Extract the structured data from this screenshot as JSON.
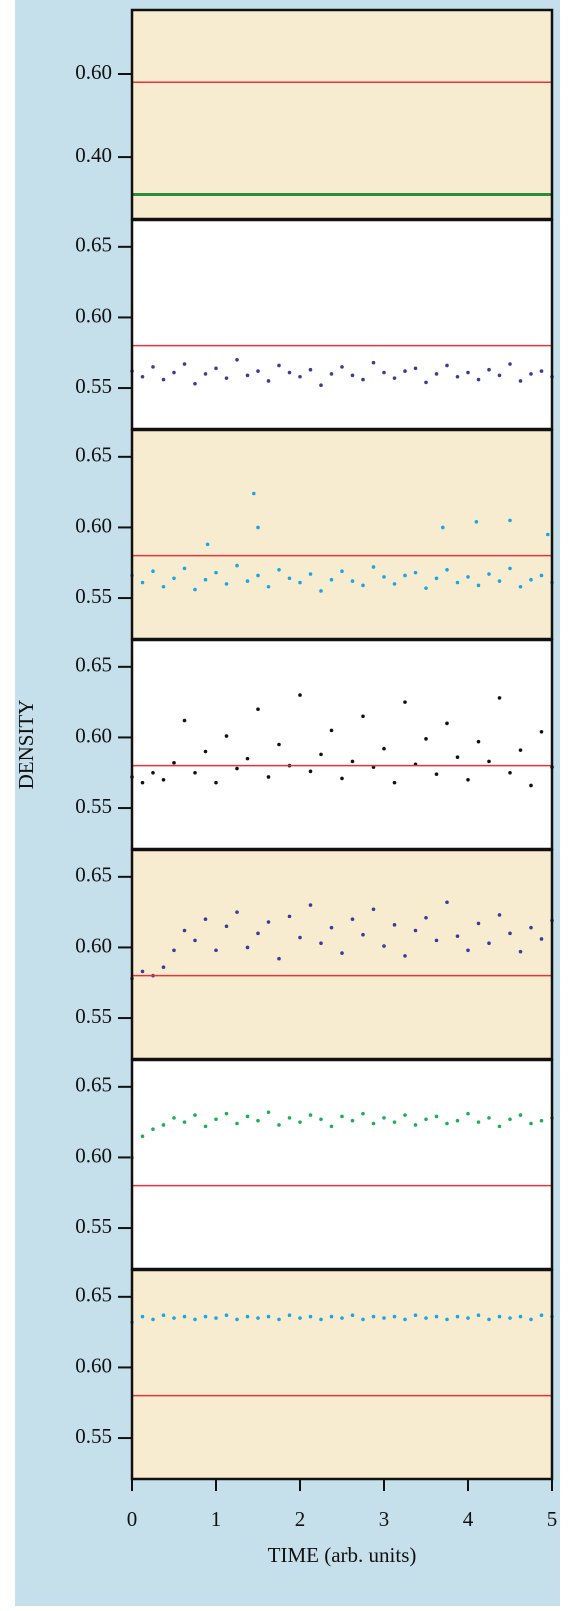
{
  "chart_data": [
    {
      "type": "scatter",
      "xlim": [
        0,
        5
      ],
      "ylim": [
        0.251,
        0.754
      ],
      "yticks": [
        {
          "value": 0.4,
          "label": "0.40"
        },
        {
          "value": 0.6,
          "label": "0.60"
        }
      ],
      "background": "#f8ecd0",
      "hline": 0.58,
      "hline_color": "#e8333a",
      "series": [
        {
          "color": "#2e8b3a",
          "style": "line",
          "x": [
            0,
            5
          ],
          "values": [
            0.31,
            0.31
          ]
        }
      ]
    },
    {
      "type": "scatter",
      "xlim": [
        0,
        5
      ],
      "ylim": [
        0.521,
        0.669
      ],
      "yticks": [
        0.55,
        {
          "value": 0.6,
          "label": "0.60"
        },
        0.65
      ],
      "background": "#ffffff",
      "hline": 0.58,
      "hline_color": "#e8333a",
      "series": [
        {
          "color": "#3b3b9a",
          "x": [
            0,
            0.125,
            0.25,
            0.375,
            0.5,
            0.625,
            0.75,
            0.875,
            1,
            1.125,
            1.25,
            1.375,
            1.5,
            1.625,
            1.75,
            1.875,
            2,
            2.125,
            2.25,
            2.375,
            2.5,
            2.625,
            2.75,
            2.875,
            3,
            3.125,
            3.25,
            3.375,
            3.5,
            3.625,
            3.75,
            3.875,
            4,
            4.125,
            4.25,
            4.375,
            4.5,
            4.625,
            4.75,
            4.875,
            5
          ],
          "values": [
            0.562,
            0.558,
            0.565,
            0.556,
            0.561,
            0.567,
            0.553,
            0.56,
            0.564,
            0.557,
            0.57,
            0.559,
            0.562,
            0.555,
            0.566,
            0.561,
            0.558,
            0.563,
            0.552,
            0.56,
            0.565,
            0.559,
            0.556,
            0.568,
            0.561,
            0.557,
            0.562,
            0.564,
            0.554,
            0.56,
            0.566,
            0.558,
            0.561,
            0.556,
            0.563,
            0.559,
            0.567,
            0.555,
            0.56,
            0.562,
            0.558
          ]
        }
      ]
    },
    {
      "type": "scatter",
      "xlim": [
        0,
        5
      ],
      "ylim": [
        0.521,
        0.669
      ],
      "yticks": [
        0.55,
        {
          "value": 0.6,
          "label": "0.60"
        },
        0.65
      ],
      "background": "#f8ecd0",
      "hline": 0.58,
      "hline_color": "#e8333a",
      "series": [
        {
          "color": "#1aa6e0",
          "x": [
            0,
            0.125,
            0.25,
            0.375,
            0.5,
            0.625,
            0.75,
            0.875,
            1,
            1.125,
            1.25,
            1.375,
            1.5,
            1.625,
            1.75,
            1.875,
            2,
            2.125,
            2.25,
            2.375,
            2.5,
            2.625,
            2.75,
            2.875,
            3,
            3.125,
            3.25,
            3.375,
            3.5,
            3.625,
            3.75,
            3.875,
            4,
            4.125,
            4.25,
            4.375,
            4.5,
            4.625,
            4.75,
            4.875,
            5,
            0.9,
            1.45,
            1.5,
            3.7,
            4.1,
            4.5,
            4.95
          ],
          "values": [
            0.566,
            0.561,
            0.569,
            0.558,
            0.564,
            0.571,
            0.556,
            0.563,
            0.568,
            0.56,
            0.573,
            0.562,
            0.566,
            0.558,
            0.57,
            0.564,
            0.561,
            0.567,
            0.555,
            0.563,
            0.569,
            0.562,
            0.559,
            0.572,
            0.565,
            0.56,
            0.566,
            0.568,
            0.557,
            0.564,
            0.57,
            0.561,
            0.565,
            0.559,
            0.567,
            0.562,
            0.571,
            0.558,
            0.563,
            0.566,
            0.561,
            0.588,
            0.624,
            0.6,
            0.6,
            0.604,
            0.605,
            0.595
          ]
        }
      ]
    },
    {
      "type": "scatter",
      "xlim": [
        0,
        5
      ],
      "ylim": [
        0.521,
        0.669
      ],
      "yticks": [
        0.55,
        {
          "value": 0.6,
          "label": "0.60"
        },
        0.65
      ],
      "background": "#ffffff",
      "hline": 0.58,
      "hline_color": "#e8333a",
      "ylabel": "DENSITY",
      "series": [
        {
          "color": "#111111",
          "x": [
            0,
            0.125,
            0.25,
            0.375,
            0.5,
            0.625,
            0.75,
            0.875,
            1,
            1.125,
            1.25,
            1.375,
            1.5,
            1.625,
            1.75,
            1.875,
            2,
            2.125,
            2.25,
            2.375,
            2.5,
            2.625,
            2.75,
            2.875,
            3,
            3.125,
            3.25,
            3.375,
            3.5,
            3.625,
            3.75,
            3.875,
            4,
            4.125,
            4.25,
            4.375,
            4.5,
            4.625,
            4.75,
            4.875,
            5
          ],
          "values": [
            0.572,
            0.568,
            0.575,
            0.57,
            0.582,
            0.612,
            0.575,
            0.59,
            0.568,
            0.601,
            0.578,
            0.585,
            0.62,
            0.572,
            0.595,
            0.58,
            0.63,
            0.576,
            0.588,
            0.605,
            0.571,
            0.583,
            0.615,
            0.579,
            0.592,
            0.568,
            0.625,
            0.581,
            0.599,
            0.574,
            0.61,
            0.586,
            0.57,
            0.597,
            0.583,
            0.628,
            0.575,
            0.591,
            0.566,
            0.604,
            0.579
          ]
        }
      ]
    },
    {
      "type": "scatter",
      "xlim": [
        0,
        5
      ],
      "ylim": [
        0.521,
        0.669
      ],
      "yticks": [
        0.55,
        {
          "value": 0.6,
          "label": "0.60"
        },
        0.65
      ],
      "background": "#f8ecd0",
      "hline": 0.58,
      "hline_color": "#e8333a",
      "series": [
        {
          "color": "#3b3b9a",
          "x": [
            0,
            0.125,
            0.25,
            0.375,
            0.5,
            0.625,
            0.75,
            0.875,
            1,
            1.125,
            1.25,
            1.375,
            1.5,
            1.625,
            1.75,
            1.875,
            2,
            2.125,
            2.25,
            2.375,
            2.5,
            2.625,
            2.75,
            2.875,
            3,
            3.125,
            3.25,
            3.375,
            3.5,
            3.625,
            3.75,
            3.875,
            4,
            4.125,
            4.25,
            4.375,
            4.5,
            4.625,
            4.75,
            4.875,
            5
          ],
          "values": [
            0.578,
            0.583,
            0.58,
            0.586,
            0.598,
            0.612,
            0.605,
            0.62,
            0.598,
            0.615,
            0.625,
            0.6,
            0.61,
            0.618,
            0.592,
            0.622,
            0.607,
            0.63,
            0.603,
            0.614,
            0.596,
            0.62,
            0.609,
            0.627,
            0.601,
            0.616,
            0.594,
            0.612,
            0.621,
            0.605,
            0.632,
            0.608,
            0.598,
            0.617,
            0.603,
            0.623,
            0.61,
            0.597,
            0.614,
            0.606,
            0.619
          ]
        }
      ]
    },
    {
      "type": "scatter",
      "xlim": [
        0,
        5
      ],
      "ylim": [
        0.521,
        0.669
      ],
      "yticks": [
        0.55,
        {
          "value": 0.6,
          "label": "0.60"
        },
        0.65
      ],
      "background": "#ffffff",
      "hline": 0.58,
      "hline_color": "#e8333a",
      "series": [
        {
          "color": "#1db050",
          "x": [
            0,
            0.125,
            0.25,
            0.375,
            0.5,
            0.625,
            0.75,
            0.875,
            1,
            1.125,
            1.25,
            1.375,
            1.5,
            1.625,
            1.75,
            1.875,
            2,
            2.125,
            2.25,
            2.375,
            2.5,
            2.625,
            2.75,
            2.875,
            3,
            3.125,
            3.25,
            3.375,
            3.5,
            3.625,
            3.75,
            3.875,
            4,
            4.125,
            4.25,
            4.375,
            4.5,
            4.625,
            4.75,
            4.875,
            5
          ],
          "values": [
            0.6,
            0.615,
            0.62,
            0.623,
            0.628,
            0.625,
            0.63,
            0.622,
            0.627,
            0.631,
            0.624,
            0.629,
            0.626,
            0.632,
            0.623,
            0.628,
            0.625,
            0.63,
            0.627,
            0.622,
            0.629,
            0.626,
            0.631,
            0.624,
            0.628,
            0.625,
            0.63,
            0.623,
            0.627,
            0.629,
            0.624,
            0.626,
            0.631,
            0.625,
            0.628,
            0.622,
            0.627,
            0.63,
            0.624,
            0.626,
            0.628
          ]
        }
      ]
    },
    {
      "type": "scatter",
      "xlim": [
        0,
        5
      ],
      "ylim": [
        0.521,
        0.669
      ],
      "yticks": [
        0.55,
        {
          "value": 0.6,
          "label": "0.60"
        },
        0.65
      ],
      "background": "#f8ecd0",
      "hline": 0.58,
      "hline_color": "#e8333a",
      "xticks": [
        0,
        1,
        2,
        3,
        4,
        5
      ],
      "xlabel": "TIME (arb. units)",
      "series": [
        {
          "color": "#1aa6e0",
          "x": [
            0,
            0.125,
            0.25,
            0.375,
            0.5,
            0.625,
            0.75,
            0.875,
            1,
            1.125,
            1.25,
            1.375,
            1.5,
            1.625,
            1.75,
            1.875,
            2,
            2.125,
            2.25,
            2.375,
            2.5,
            2.625,
            2.75,
            2.875,
            3,
            3.125,
            3.25,
            3.375,
            3.5,
            3.625,
            3.75,
            3.875,
            4,
            4.125,
            4.25,
            4.375,
            4.5,
            4.625,
            4.75,
            4.875,
            5
          ],
          "values": [
            0.632,
            0.636,
            0.634,
            0.637,
            0.635,
            0.636,
            0.634,
            0.636,
            0.635,
            0.637,
            0.634,
            0.636,
            0.635,
            0.636,
            0.634,
            0.637,
            0.635,
            0.636,
            0.634,
            0.636,
            0.635,
            0.637,
            0.634,
            0.636,
            0.635,
            0.636,
            0.634,
            0.637,
            0.635,
            0.636,
            0.634,
            0.636,
            0.635,
            0.637,
            0.634,
            0.636,
            0.635,
            0.636,
            0.634,
            0.637,
            0.636
          ]
        }
      ]
    }
  ]
}
